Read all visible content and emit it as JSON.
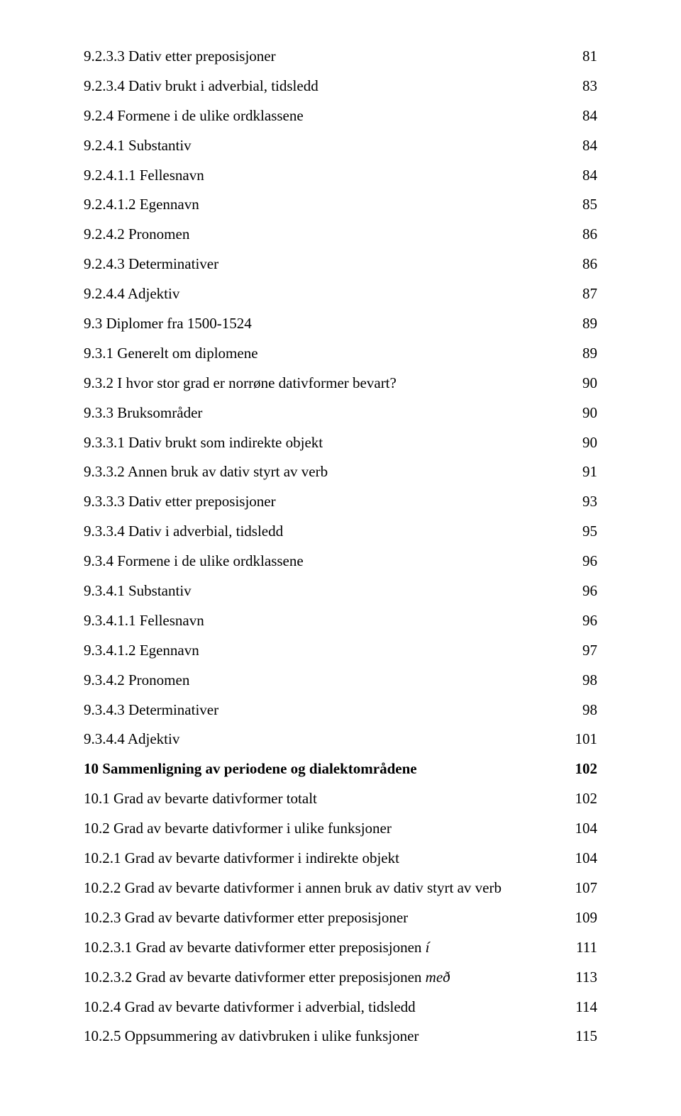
{
  "toc": [
    {
      "label": "9.2.3.3 Dativ etter preposisjoner",
      "page": "81",
      "bold": false
    },
    {
      "label": "9.2.3.4 Dativ brukt i adverbial, tidsledd",
      "page": "83",
      "bold": false
    },
    {
      "label": "9.2.4 Formene i de ulike ordklassene",
      "page": "84",
      "bold": false
    },
    {
      "label": "9.2.4.1 Substantiv",
      "page": "84",
      "bold": false
    },
    {
      "label": "9.2.4.1.1 Fellesnavn",
      "page": "84",
      "bold": false
    },
    {
      "label": "9.2.4.1.2 Egennavn",
      "page": "85",
      "bold": false
    },
    {
      "label": "9.2.4.2 Pronomen",
      "page": "86",
      "bold": false
    },
    {
      "label": "9.2.4.3 Determinativer",
      "page": "86",
      "bold": false
    },
    {
      "label": "9.2.4.4 Adjektiv",
      "page": "87",
      "bold": false
    },
    {
      "label": "9.3 Diplomer fra 1500-1524",
      "page": "89",
      "bold": false
    },
    {
      "label": "9.3.1 Generelt om diplomene",
      "page": "89",
      "bold": false
    },
    {
      "label": "9.3.2 I hvor stor grad er norrøne dativformer bevart?",
      "page": "90",
      "bold": false
    },
    {
      "label": "9.3.3 Bruksområder",
      "page": "90",
      "bold": false
    },
    {
      "label": "9.3.3.1 Dativ brukt som indirekte objekt",
      "page": "90",
      "bold": false
    },
    {
      "label": "9.3.3.2 Annen bruk av dativ styrt av verb",
      "page": "91",
      "bold": false
    },
    {
      "label": "9.3.3.3 Dativ etter preposisjoner",
      "page": "93",
      "bold": false
    },
    {
      "label": "9.3.3.4 Dativ i adverbial, tidsledd",
      "page": "95",
      "bold": false
    },
    {
      "label": "9.3.4 Formene i de ulike ordklassene",
      "page": "96",
      "bold": false
    },
    {
      "label": "9.3.4.1 Substantiv",
      "page": "96",
      "bold": false
    },
    {
      "label": "9.3.4.1.1 Fellesnavn",
      "page": "96",
      "bold": false
    },
    {
      "label": "9.3.4.1.2 Egennavn",
      "page": "97",
      "bold": false
    },
    {
      "label": "9.3.4.2 Pronomen",
      "page": "98",
      "bold": false
    },
    {
      "label": "9.3.4.3 Determinativer",
      "page": "98",
      "bold": false
    },
    {
      "label": "9.3.4.4 Adjektiv",
      "page": "101",
      "bold": false
    },
    {
      "label": "10 Sammenligning av periodene og dialektområdene",
      "page": "102",
      "bold": true
    },
    {
      "label": "10.1 Grad av bevarte dativformer totalt",
      "page": "102",
      "bold": false
    },
    {
      "label": "10.2 Grad av bevarte dativformer i ulike funksjoner",
      "page": "104",
      "bold": false
    },
    {
      "label": "10.2.1 Grad av bevarte dativformer i indirekte objekt",
      "page": "104",
      "bold": false
    },
    {
      "label": "10.2.2 Grad av bevarte dativformer i annen bruk av dativ styrt av verb",
      "page": "107",
      "bold": false
    },
    {
      "label": "10.2.3 Grad av bevarte dativformer etter preposisjoner",
      "page": "109",
      "bold": false
    },
    {
      "label_html": "10.2.3.1 Grad av bevarte dativformer etter preposisjonen <span class=\"it\">í</span>",
      "page": "111",
      "bold": false
    },
    {
      "label_html": "10.2.3.2 Grad av bevarte dativformer etter preposisjonen <span class=\"it\">með</span>",
      "page": "113",
      "bold": false
    },
    {
      "label": "10.2.4 Grad av bevarte dativformer i adverbial, tidsledd",
      "page": "114",
      "bold": false
    },
    {
      "label": "10.2.5 Oppsummering av dativbruken i ulike funksjoner",
      "page": "115",
      "bold": false
    }
  ]
}
